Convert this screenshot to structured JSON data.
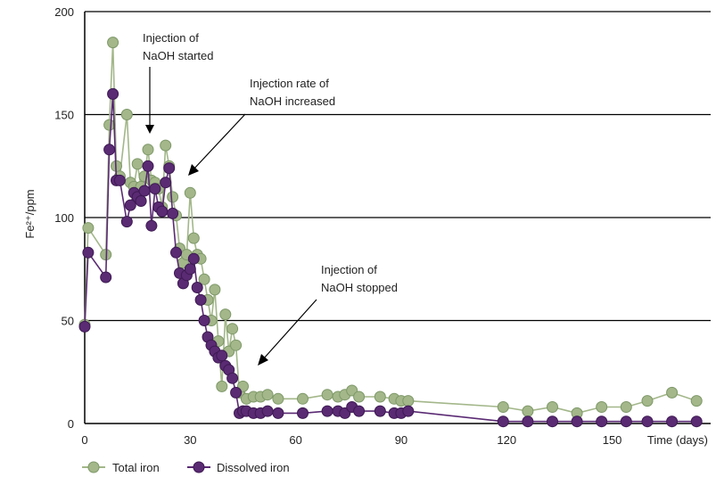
{
  "chart_data": {
    "type": "line",
    "ylabel": "Fe²⁺/ppm",
    "xlabel_right": "Time (days)",
    "xlim": [
      0,
      178
    ],
    "ylim": [
      0,
      200
    ],
    "x_ticks": [
      0,
      30,
      60,
      90,
      120,
      150
    ],
    "y_ticks": [
      0,
      50,
      100,
      150,
      200
    ],
    "grid": "horizontal",
    "legend_position": "bottom-left",
    "colors": {
      "total": "#a3b78a",
      "total_edge": "#7e9868",
      "dissolved": "#5a2a73",
      "dissolved_edge": "#3d1a52",
      "gridline": "#000000"
    },
    "annotations": [
      {
        "line1": "Injection of",
        "line2": "NaOH started"
      },
      {
        "line1": "Injection rate of",
        "line2": "NaOH increased"
      },
      {
        "line1": "Injection of",
        "line2": "NaOH stopped"
      }
    ],
    "series": [
      {
        "name": "Total iron",
        "x": [
          0,
          1,
          6,
          7,
          8,
          9,
          10,
          12,
          13,
          14,
          15,
          16,
          17,
          18,
          19,
          20,
          21,
          22,
          23,
          24,
          25,
          26,
          27,
          28,
          29,
          30,
          31,
          32,
          33,
          34,
          35,
          36,
          37,
          38,
          39,
          40,
          41,
          42,
          43,
          44,
          45,
          46,
          48,
          50,
          52,
          55,
          62,
          69,
          72,
          74,
          76,
          78,
          84,
          88,
          90,
          92,
          119,
          126,
          133,
          140,
          147,
          154,
          160,
          167,
          174
        ],
        "y": [
          48,
          95,
          82,
          145,
          185,
          125,
          120,
          150,
          117,
          115,
          126,
          115,
          120,
          133,
          118,
          117,
          114,
          105,
          135,
          125,
          110,
          101,
          85,
          78,
          82,
          112,
          90,
          82,
          80,
          70,
          60,
          50,
          65,
          40,
          18,
          53,
          35,
          46,
          38,
          15,
          18,
          12,
          13,
          13,
          14,
          12,
          12,
          14,
          13,
          14,
          16,
          13,
          13,
          12,
          11,
          11,
          8,
          6,
          8,
          5,
          8,
          8,
          11,
          15,
          11
        ]
      },
      {
        "name": "Dissolved iron",
        "x": [
          0,
          1,
          6,
          7,
          8,
          9,
          10,
          12,
          13,
          14,
          15,
          16,
          17,
          18,
          19,
          20,
          21,
          22,
          23,
          24,
          25,
          26,
          27,
          28,
          29,
          30,
          31,
          32,
          33,
          34,
          35,
          36,
          37,
          38,
          39,
          40,
          41,
          42,
          43,
          44,
          45,
          46,
          48,
          50,
          52,
          55,
          62,
          69,
          72,
          74,
          76,
          78,
          84,
          88,
          90,
          92,
          119,
          126,
          133,
          140,
          147,
          154,
          160,
          167,
          174
        ],
        "y": [
          47,
          83,
          71,
          133,
          160,
          118,
          118,
          98,
          106,
          112,
          110,
          108,
          113,
          125,
          96,
          114,
          105,
          103,
          117,
          124,
          102,
          83,
          73,
          68,
          72,
          75,
          80,
          66,
          60,
          50,
          42,
          38,
          35,
          32,
          33,
          28,
          26,
          22,
          15,
          5,
          6,
          6,
          5,
          5,
          6,
          5,
          5,
          6,
          6,
          5,
          8,
          6,
          6,
          5,
          5,
          6,
          1,
          1,
          1,
          1,
          1,
          1,
          1,
          1,
          1
        ]
      }
    ]
  }
}
